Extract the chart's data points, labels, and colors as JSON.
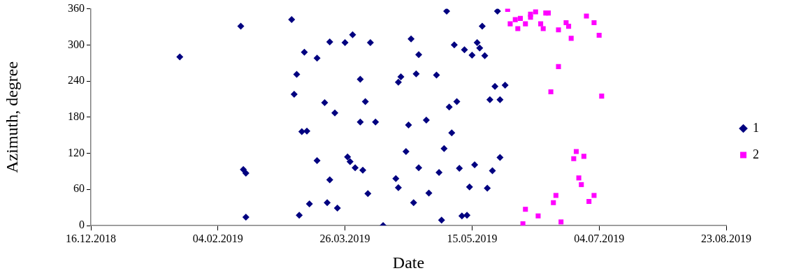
{
  "chart_data": {
    "type": "scatter",
    "xlabel": "Date",
    "ylabel": "Azimuth, degree",
    "xlim": [
      "2018-12-16",
      "2019-08-23"
    ],
    "xticks": [
      {
        "value": "2018-12-16",
        "label": "16.12.2018"
      },
      {
        "value": "2019-02-04",
        "label": "04.02.2019"
      },
      {
        "value": "2019-03-26",
        "label": "26.03.2019"
      },
      {
        "value": "2019-05-15",
        "label": "15.05.2019"
      },
      {
        "value": "2019-07-04",
        "label": "04.07.2019"
      },
      {
        "value": "2019-08-23",
        "label": "23.08.2019"
      }
    ],
    "ylim": [
      0,
      360
    ],
    "yticks": [
      0,
      60,
      120,
      180,
      240,
      300,
      360
    ],
    "grid": false,
    "legend": "right",
    "series": [
      {
        "name": "1",
        "color": "#000080",
        "marker": "diamond",
        "x": [
          "2019-01-20",
          "2019-02-13",
          "2019-03-05",
          "2019-03-10",
          "2019-03-07",
          "2019-03-06",
          "2019-03-09",
          "2019-03-11",
          "2019-02-14",
          "2019-02-15",
          "2019-02-15",
          "2019-03-08",
          "2019-03-12",
          "2019-03-15",
          "2019-03-20",
          "2019-03-26",
          "2019-03-29",
          "2019-04-05",
          "2019-04-21",
          "2019-04-24",
          "2019-04-01",
          "2019-04-17",
          "2019-04-16",
          "2019-04-23",
          "2019-03-18",
          "2019-03-22",
          "2019-04-03",
          "2019-04-01",
          "2019-04-07",
          "2019-04-20",
          "2019-03-15",
          "2019-03-27",
          "2019-03-28",
          "2019-03-30",
          "2019-04-02",
          "2019-04-19",
          "2019-04-24",
          "2019-03-20",
          "2019-04-15",
          "2019-04-16",
          "2019-04-04",
          "2019-03-19",
          "2019-03-23",
          "2019-04-22",
          "2019-04-10",
          "2019-05-05",
          "2019-05-25",
          "2019-05-19",
          "2019-05-08",
          "2019-05-12",
          "2019-05-17",
          "2019-05-18",
          "2019-05-15",
          "2019-05-20",
          "2019-05-01",
          "2019-05-24",
          "2019-05-28",
          "2019-05-22",
          "2019-05-26",
          "2019-05-09",
          "2019-05-06",
          "2019-04-27",
          "2019-05-07",
          "2019-05-04",
          "2019-05-26",
          "2019-05-02",
          "2019-05-10",
          "2019-05-16",
          "2019-05-23",
          "2019-05-14",
          "2019-05-21",
          "2019-04-28",
          "2019-05-03",
          "2019-05-11",
          "2019-05-13"
        ],
        "values": [
          280,
          331,
          342,
          288,
          251,
          218,
          156,
          157,
          93,
          87,
          14,
          17,
          36,
          278,
          305,
          304,
          317,
          304,
          310,
          284,
          243,
          247,
          238,
          252,
          204,
          187,
          206,
          172,
          172,
          167,
          108,
          114,
          106,
          96,
          92,
          123,
          96,
          76,
          78,
          63,
          53,
          38,
          29,
          38,
          0,
          356,
          356,
          331,
          300,
          292,
          304,
          295,
          283,
          282,
          250,
          231,
          233,
          209,
          209,
          206,
          197,
          175,
          154,
          128,
          113,
          88,
          95,
          101,
          91,
          64,
          62,
          54,
          9,
          16,
          17
        ]
      },
      {
        "name": "2",
        "color": "#ff00ff",
        "marker": "square",
        "x": [
          "2019-05-29",
          "2019-06-01",
          "2019-05-30",
          "2019-06-03",
          "2019-06-02",
          "2019-06-05",
          "2019-06-07",
          "2019-06-07",
          "2019-06-09",
          "2019-06-13",
          "2019-06-14",
          "2019-06-11",
          "2019-06-12",
          "2019-06-18",
          "2019-06-21",
          "2019-06-22",
          "2019-06-23",
          "2019-06-29",
          "2019-07-02",
          "2019-07-04",
          "2019-06-18",
          "2019-06-15",
          "2019-07-05",
          "2019-06-25",
          "2019-06-24",
          "2019-06-28",
          "2019-06-26",
          "2019-06-27",
          "2019-06-17",
          "2019-06-16",
          "2019-07-02",
          "2019-06-30",
          "2019-06-05",
          "2019-06-10",
          "2019-06-04",
          "2019-06-19"
        ],
        "values": [
          359,
          342,
          335,
          344,
          327,
          335,
          351,
          346,
          355,
          353,
          353,
          335,
          327,
          325,
          337,
          331,
          311,
          348,
          337,
          316,
          264,
          222,
          215,
          123,
          111,
          115,
          79,
          68,
          50,
          38,
          50,
          40,
          27,
          16,
          3,
          6
        ]
      }
    ]
  }
}
